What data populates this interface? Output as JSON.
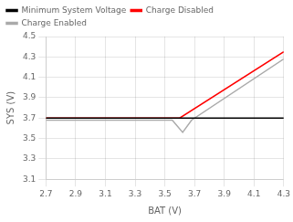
{
  "chart_data": {
    "type": "line",
    "xlabel": "BAT (V)",
    "ylabel": "SYS (V)",
    "xlim": [
      2.7,
      4.3
    ],
    "ylim": [
      3.1,
      4.5
    ],
    "xticks": [
      2.7,
      2.9,
      3.1,
      3.3,
      3.5,
      3.7,
      3.9,
      4.1,
      4.3
    ],
    "yticks": [
      3.1,
      3.3,
      3.5,
      3.7,
      3.9,
      4.1,
      4.3,
      4.5
    ],
    "grid": true,
    "legend": "upper left",
    "series": [
      {
        "name": "Minimum System Voltage",
        "color": "#000000",
        "x": [
          2.7,
          4.3
        ],
        "values": [
          3.7,
          3.7
        ]
      },
      {
        "name": "Charge Disabled",
        "color": "#ff0000",
        "x": [
          2.7,
          3.6,
          4.3
        ],
        "values": [
          3.7,
          3.7,
          4.35
        ]
      },
      {
        "name": "Charge Enabled",
        "color": "#aaaaaa",
        "x": [
          2.7,
          3.55,
          3.62,
          3.68,
          4.3
        ],
        "values": [
          3.68,
          3.68,
          3.56,
          3.68,
          4.28
        ]
      }
    ]
  }
}
